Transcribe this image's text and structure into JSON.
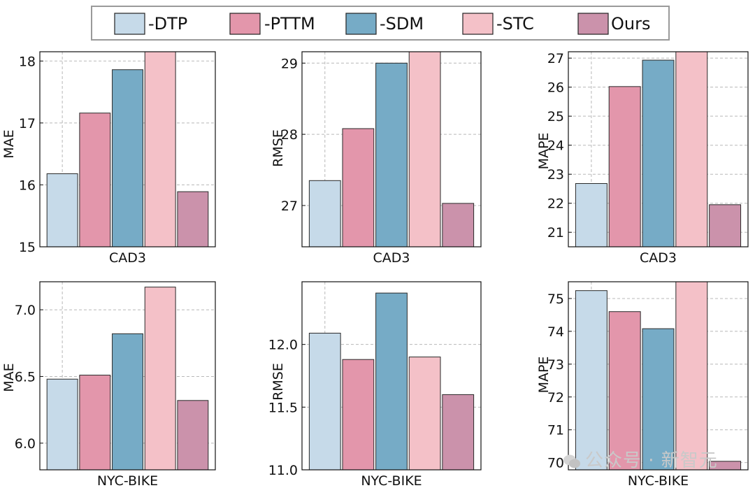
{
  "legend": {
    "entries": [
      {
        "label": "-DTP",
        "color": "#c6dae9"
      },
      {
        "label": "-PTTM",
        "color": "#e396ab"
      },
      {
        "label": "-SDM",
        "color": "#76abc6"
      },
      {
        "label": "-STC",
        "color": "#f4c1c8"
      },
      {
        "label": "Ours",
        "color": "#cb92ab"
      }
    ]
  },
  "watermark": {
    "text": "公众号 · 新智元",
    "icon": "wechat-icon"
  },
  "chart_data": [
    {
      "type": "bar",
      "xlabel": "CAD3",
      "ylabel": "MAE",
      "categories": [
        "-DTP",
        "-PTTM",
        "-SDM",
        "-STC",
        "Ours"
      ],
      "values": [
        16.18,
        17.16,
        17.86,
        18.2,
        15.89
      ],
      "ylim": [
        15,
        18.15
      ],
      "yticks": [
        "15",
        "16",
        "17",
        "18"
      ],
      "grid": true
    },
    {
      "type": "bar",
      "xlabel": "CAD3",
      "ylabel": "RMSE",
      "categories": [
        "-DTP",
        "-PTTM",
        "-SDM",
        "-STC",
        "Ours"
      ],
      "values": [
        27.35,
        28.08,
        29.0,
        29.2,
        27.03
      ],
      "ylim": [
        26.42,
        29.16
      ],
      "yticks": [
        "27",
        "28",
        "29"
      ],
      "grid": true
    },
    {
      "type": "bar",
      "xlabel": "CAD3",
      "ylabel": "MAPE",
      "categories": [
        "-DTP",
        "-PTTM",
        "-SDM",
        "-STC",
        "Ours"
      ],
      "values": [
        22.68,
        26.02,
        26.93,
        27.5,
        21.95
      ],
      "ylim": [
        20.5,
        27.22
      ],
      "yticks": [
        "21",
        "22",
        "23",
        "24",
        "25",
        "26",
        "27"
      ],
      "grid": true
    },
    {
      "type": "bar",
      "xlabel": "NYC-BIKE",
      "ylabel": "MAE",
      "categories": [
        "-DTP",
        "-PTTM",
        "-SDM",
        "-STC",
        "Ours"
      ],
      "values": [
        6.48,
        6.51,
        6.82,
        7.17,
        6.32
      ],
      "ylim": [
        5.8,
        7.21
      ],
      "yticks": [
        "6.0",
        "6.5",
        "7.0"
      ],
      "grid": true
    },
    {
      "type": "bar",
      "xlabel": "NYC-BIKE",
      "ylabel": "RMSE",
      "categories": [
        "-DTP",
        "-PTTM",
        "-SDM",
        "-STC",
        "Ours"
      ],
      "values": [
        12.09,
        11.88,
        12.41,
        11.9,
        11.6
      ],
      "ylim": [
        11.0,
        12.5
      ],
      "yticks": [
        "11.0",
        "11.5",
        "12.0"
      ],
      "grid": true
    },
    {
      "type": "bar",
      "xlabel": "NYC-BIKE",
      "ylabel": "MAPE",
      "categories": [
        "-DTP",
        "-PTTM",
        "-SDM",
        "-STC",
        "Ours"
      ],
      "values": [
        75.24,
        74.6,
        74.08,
        75.6,
        70.04
      ],
      "ylim": [
        69.78,
        75.51
      ],
      "yticks": [
        "70",
        "71",
        "72",
        "73",
        "74",
        "75"
      ],
      "grid": true
    }
  ]
}
